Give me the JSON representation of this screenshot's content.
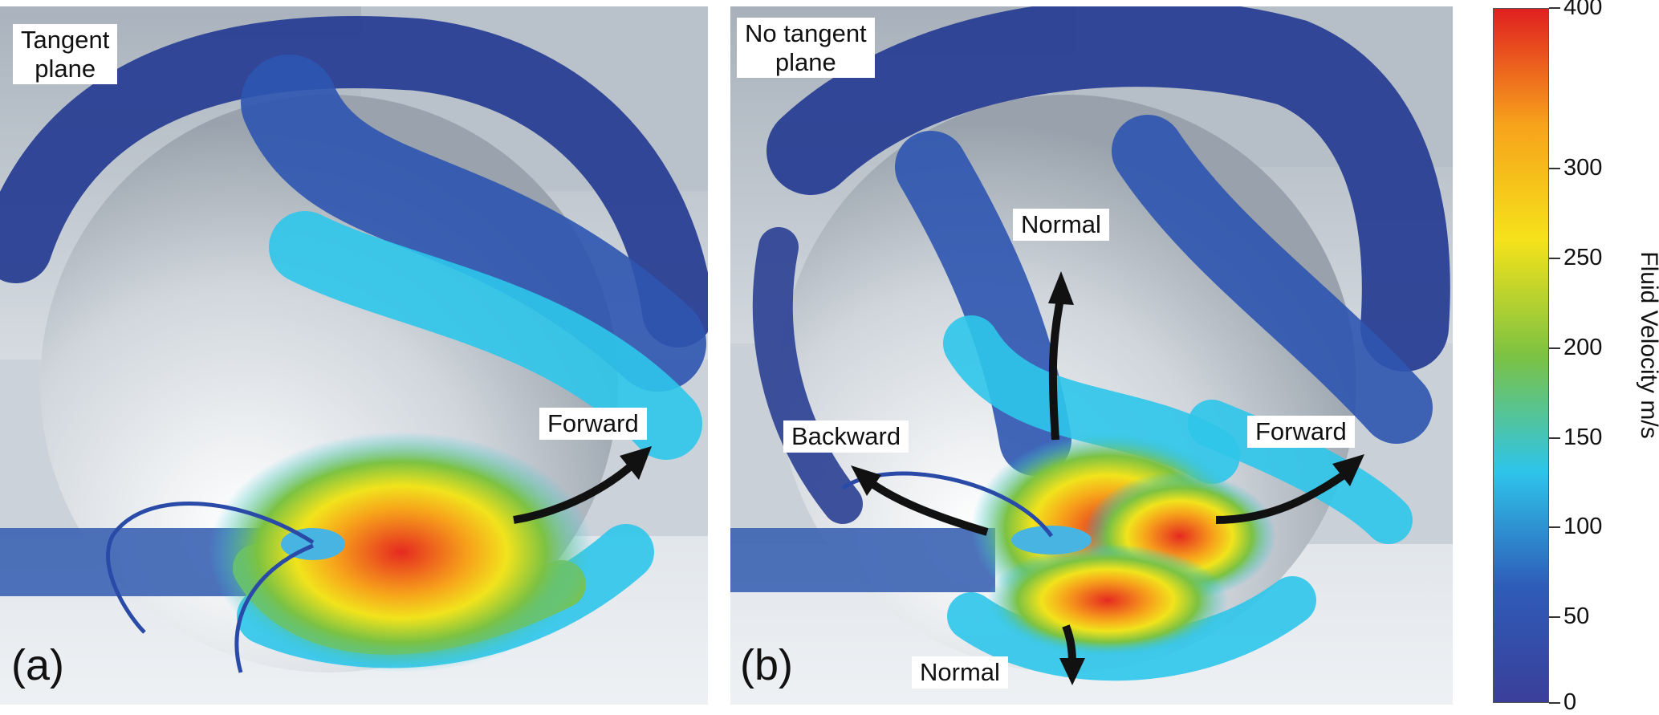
{
  "panels": [
    {
      "letter": "(a)",
      "title": "Tangent\nplane",
      "arrows": [
        "Forward"
      ]
    },
    {
      "letter": "(b)",
      "title": "No tangent\nplane",
      "arrows": [
        "Normal",
        "Backward",
        "Forward",
        "Normal"
      ]
    }
  ],
  "colorbar": {
    "title": "Fluid Velocity m/s",
    "ticks": [
      "400",
      "300",
      "250",
      "200",
      "150",
      "100",
      "50",
      "0"
    ],
    "colors": [
      "#e02020",
      "#f7a21b",
      "#f5e21a",
      "#7cc242",
      "#2ec5ea",
      "#2e5cb8",
      "#3a3f9a"
    ]
  }
}
